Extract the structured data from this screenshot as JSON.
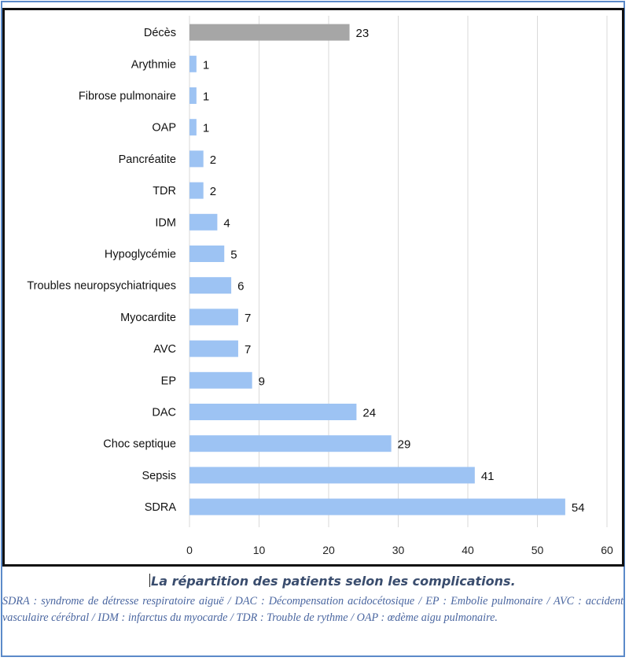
{
  "chart_data": {
    "type": "bar",
    "orientation": "horizontal",
    "title": "",
    "xlabel": "",
    "ylabel": "",
    "xlim": [
      0,
      60
    ],
    "xticks": [
      "0",
      "10",
      "20",
      "30",
      "40",
      "50",
      "60"
    ],
    "grid": true,
    "categories": [
      "Décès",
      "Arythmie",
      "Fibrose pulmonaire",
      "OAP",
      "Pancréatite",
      "TDR",
      "IDM",
      "Hypoglycémie",
      "Troubles neuropsychiatriques",
      "Myocardite",
      "AVC",
      "EP",
      "DAC",
      "Choc septique",
      "Sepsis",
      "SDRA"
    ],
    "values": [
      23,
      1,
      1,
      1,
      2,
      2,
      4,
      5,
      6,
      7,
      7,
      9,
      24,
      29,
      41,
      54
    ],
    "data_labels": [
      "23",
      "1",
      "1",
      "1",
      "2",
      "2",
      "4",
      "5",
      "6",
      "7",
      "7",
      "9",
      "24",
      "29",
      "41",
      "54"
    ],
    "colors": {
      "highlight": "#a6a6a6",
      "bar": "#9dc3f3",
      "grid": "#d9d9d9"
    },
    "highlighted_category": "Décès"
  },
  "caption": "La répartition des patients selon les complications.",
  "legend_note": "SDRA : syndrome de détresse respiratoire aiguë / DAC : Décompensation acidocétosique / EP : Embolie pulmonaire / AVC : accident vasculaire cérébral / IDM : infarctus du myocarde / TDR : Trouble de rythme / OAP : œdème aigu pulmonaire."
}
